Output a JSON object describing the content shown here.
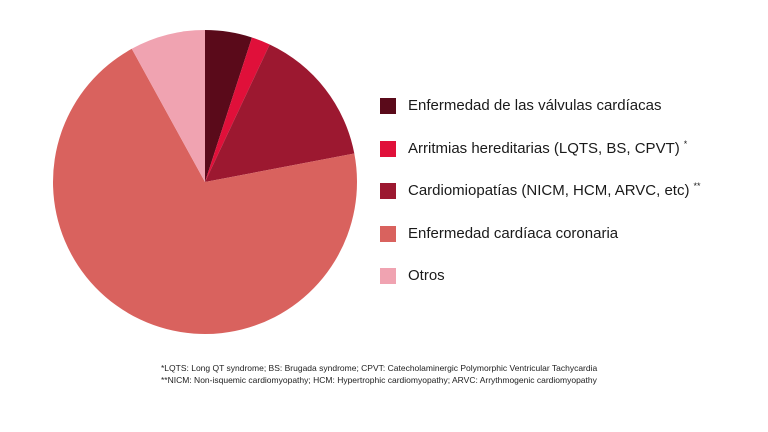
{
  "chart_data": {
    "type": "pie",
    "title": "",
    "start_angle_deg": 0,
    "direction": "clockwise",
    "slices": [
      {
        "label": "Enfermedad de las válvulas cardíacas",
        "note": "",
        "value": 5,
        "color": "#5a0a1a"
      },
      {
        "label": "Arritmias hereditarias (LQTS, BS, CPVT)",
        "note": "*",
        "value": 2,
        "color": "#e0103a"
      },
      {
        "label": "Cardiomiopatías (NICM, HCM, ARVC, etc)",
        "note": "**",
        "value": 15,
        "color": "#9c1830"
      },
      {
        "label": "Enfermedad cardíaca coronaria",
        "note": "",
        "value": 70,
        "color": "#d9625e"
      },
      {
        "label": "Otros",
        "note": "",
        "value": 8,
        "color": "#f0a3b1"
      }
    ],
    "legend_position": "right"
  },
  "footnotes": [
    "*LQTS: Long QT syndrome; BS: Brugada syndrome; CPVT: Catecholaminergic Polymorphic Ventricular Tachycardia",
    "**NICM: Non-isquemic cardiomyopathy; HCM: Hypertrophic cardiomyopathy; ARVC: Arrythmogenic cardiomyopathy"
  ]
}
